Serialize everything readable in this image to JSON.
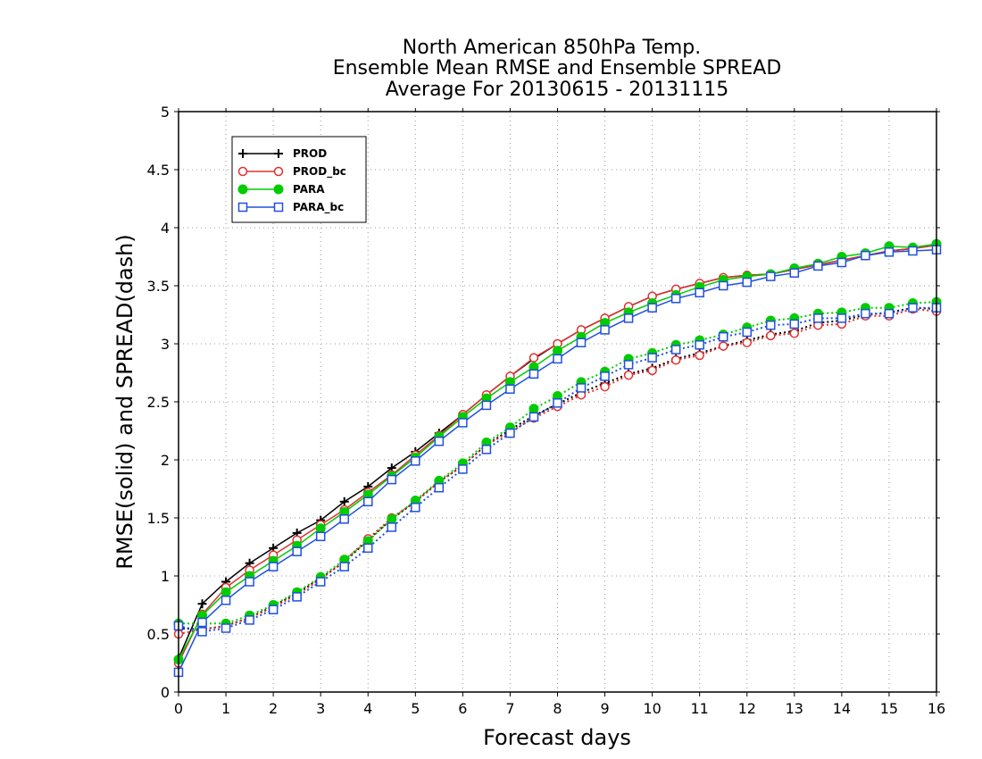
{
  "chart_data": {
    "type": "line",
    "title": [
      "North American 850hPa Temp.",
      "Ensemble Mean RMSE and Ensemble SPREAD",
      "Average For 20130615 - 20131115"
    ],
    "xlabel": "Forecast days",
    "ylabel": "RMSE(solid) and SPREAD(dash)",
    "xlim": [
      0,
      16
    ],
    "ylim": [
      0,
      5
    ],
    "xticks": [
      0,
      1,
      2,
      3,
      4,
      5,
      6,
      7,
      8,
      9,
      10,
      11,
      12,
      13,
      14,
      15,
      16
    ],
    "yticks": [
      0,
      0.5,
      1,
      1.5,
      2,
      2.5,
      3,
      3.5,
      4,
      4.5,
      5
    ],
    "ytick_labels": [
      "0",
      "0.5",
      "1",
      "1.5",
      "2",
      "2.5",
      "3",
      "3.5",
      "4",
      "4.5",
      "5"
    ],
    "grid": true,
    "legend_position": "top-left",
    "x": [
      0,
      0.5,
      1,
      1.5,
      2,
      2.5,
      3,
      3.5,
      4,
      4.5,
      5,
      5.5,
      6,
      6.5,
      7,
      7.5,
      8,
      8.5,
      9,
      9.5,
      10,
      10.5,
      11,
      11.5,
      12,
      12.5,
      13,
      13.5,
      14,
      14.5,
      15,
      15.5,
      16
    ],
    "series": [
      {
        "name": "PROD",
        "color": "#000000",
        "marker": "plus",
        "rmse": [
          0.29,
          0.76,
          0.95,
          1.11,
          1.24,
          1.37,
          1.48,
          1.64,
          1.77,
          1.93,
          2.07,
          2.23,
          2.39,
          2.56,
          2.72,
          2.87,
          3.0,
          3.12,
          3.22,
          3.32,
          3.41,
          3.47,
          3.52,
          3.57,
          3.59,
          3.6,
          3.64,
          3.68,
          3.72,
          3.76,
          3.8,
          3.82,
          3.85
        ],
        "spread": [
          0.55,
          0.54,
          0.57,
          0.64,
          0.74,
          0.85,
          0.98,
          1.12,
          1.31,
          1.49,
          1.64,
          1.81,
          1.95,
          2.13,
          2.26,
          2.38,
          2.48,
          2.58,
          2.66,
          2.74,
          2.79,
          2.87,
          2.92,
          2.98,
          3.03,
          3.08,
          3.11,
          3.18,
          3.2,
          3.25,
          3.27,
          3.31,
          3.3
        ]
      },
      {
        "name": "PROD_bc",
        "color": "#e03030",
        "marker": "circle",
        "rmse": [
          0.25,
          0.67,
          0.9,
          1.05,
          1.18,
          1.31,
          1.44,
          1.57,
          1.72,
          1.87,
          2.04,
          2.21,
          2.39,
          2.56,
          2.72,
          2.88,
          3.0,
          3.12,
          3.22,
          3.32,
          3.41,
          3.47,
          3.52,
          3.57,
          3.59,
          3.6,
          3.64,
          3.68,
          3.72,
          3.76,
          3.8,
          3.82,
          3.85
        ],
        "spread": [
          0.5,
          0.54,
          0.57,
          0.64,
          0.73,
          0.84,
          0.97,
          1.13,
          1.32,
          1.5,
          1.64,
          1.81,
          1.95,
          2.13,
          2.24,
          2.36,
          2.46,
          2.56,
          2.63,
          2.73,
          2.77,
          2.86,
          2.9,
          2.98,
          3.01,
          3.07,
          3.09,
          3.16,
          3.17,
          3.24,
          3.24,
          3.3,
          3.28
        ]
      },
      {
        "name": "PARA",
        "color": "#00cc00",
        "marker": "filled-circle",
        "rmse": [
          0.28,
          0.66,
          0.86,
          1.0,
          1.13,
          1.26,
          1.41,
          1.55,
          1.7,
          1.86,
          2.02,
          2.2,
          2.37,
          2.53,
          2.67,
          2.8,
          2.94,
          3.06,
          3.18,
          3.27,
          3.35,
          3.42,
          3.49,
          3.55,
          3.58,
          3.6,
          3.65,
          3.69,
          3.75,
          3.78,
          3.84,
          3.83,
          3.86
        ],
        "spread": [
          0.59,
          0.59,
          0.59,
          0.66,
          0.75,
          0.86,
          0.99,
          1.14,
          1.3,
          1.49,
          1.65,
          1.82,
          1.97,
          2.15,
          2.28,
          2.44,
          2.55,
          2.67,
          2.76,
          2.87,
          2.92,
          2.99,
          3.03,
          3.08,
          3.14,
          3.2,
          3.22,
          3.26,
          3.27,
          3.31,
          3.31,
          3.35,
          3.36
        ]
      },
      {
        "name": "PARA_bc",
        "color": "#2050e0",
        "marker": "square",
        "rmse": [
          0.17,
          0.6,
          0.79,
          0.95,
          1.08,
          1.21,
          1.34,
          1.49,
          1.64,
          1.83,
          1.99,
          2.16,
          2.32,
          2.47,
          2.61,
          2.74,
          2.87,
          3.01,
          3.12,
          3.22,
          3.31,
          3.39,
          3.44,
          3.5,
          3.53,
          3.58,
          3.61,
          3.67,
          3.7,
          3.76,
          3.79,
          3.8,
          3.81
        ],
        "spread": [
          0.57,
          0.52,
          0.55,
          0.62,
          0.71,
          0.82,
          0.95,
          1.08,
          1.24,
          1.42,
          1.59,
          1.76,
          1.92,
          2.09,
          2.23,
          2.37,
          2.49,
          2.62,
          2.72,
          2.82,
          2.88,
          2.95,
          2.99,
          3.06,
          3.1,
          3.16,
          3.17,
          3.22,
          3.22,
          3.26,
          3.26,
          3.31,
          3.31
        ]
      }
    ]
  }
}
